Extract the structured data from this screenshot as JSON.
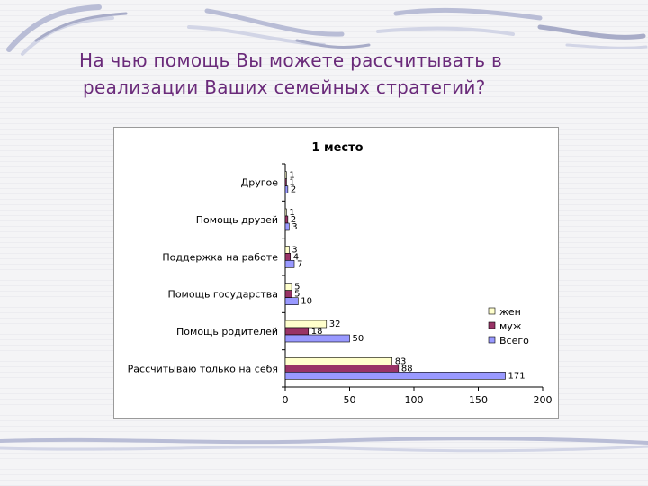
{
  "slide": {
    "title_line1": "На чью помощь Вы можете рассчитывать в",
    "title_line2": "реализации Ваших семейных стратегий?"
  },
  "chart_data": {
    "type": "bar",
    "orientation": "horizontal",
    "title": "1 место",
    "categories": [
      "Рассчитываю только на себя",
      "Помощь родителей",
      "Помощь государства",
      "Поддержка на работе",
      "Помощь друзей",
      "Другое"
    ],
    "series": [
      {
        "name": "жен",
        "color": "#ffffcc",
        "values": [
          83,
          32,
          5,
          3,
          1,
          1
        ]
      },
      {
        "name": "муж",
        "color": "#993366",
        "values": [
          88,
          18,
          5,
          4,
          2,
          1
        ]
      },
      {
        "name": "Всего",
        "color": "#9999ff",
        "values": [
          171,
          50,
          10,
          7,
          3,
          2
        ]
      }
    ],
    "xlim": [
      0,
      200
    ],
    "xticks": [
      0,
      50,
      100,
      150,
      200
    ],
    "grid": false,
    "legend_position": "right"
  }
}
